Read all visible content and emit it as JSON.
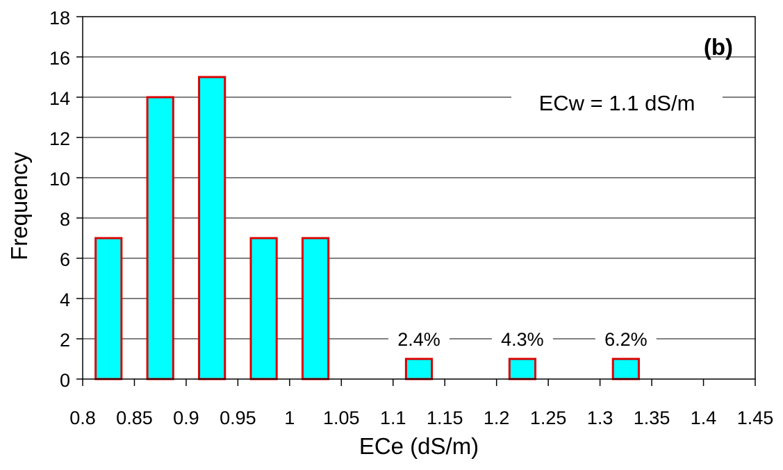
{
  "chart_data": {
    "type": "bar",
    "panel_label": "(b)",
    "xlabel": "ECe (dS/m)",
    "ylabel": "Frequency",
    "xlim": [
      0.8,
      1.45
    ],
    "ylim": [
      0,
      18
    ],
    "x_ticks": [
      "0.8",
      "0.85",
      "0.9",
      "0.95",
      "1",
      "1.05",
      "1.1",
      "1.15",
      "1.2",
      "1.25",
      "1.3",
      "1.35",
      "1.4",
      "1.45"
    ],
    "y_ticks": [
      "0",
      "2",
      "4",
      "6",
      "8",
      "10",
      "12",
      "14",
      "16",
      "18"
    ],
    "bins": [
      [
        0.8,
        0.85
      ],
      [
        0.85,
        0.9
      ],
      [
        0.9,
        0.95
      ],
      [
        0.95,
        1.0
      ],
      [
        1.0,
        1.05
      ],
      [
        1.1,
        1.15
      ],
      [
        1.2,
        1.25
      ],
      [
        1.3,
        1.35
      ]
    ],
    "values": [
      7,
      14,
      15,
      7,
      7,
      1,
      1,
      1
    ],
    "bar_labels": [
      "",
      "",
      "",
      "",
      "",
      "2.4%",
      "4.3%",
      "6.2%"
    ],
    "annotation": "ECw = 1.1 dS/m",
    "grid": "horizontal",
    "colors": {
      "bar_fill": "#00ffff",
      "bar_stroke": "#dd0000",
      "grid": "#000000",
      "axis": "#000000"
    }
  }
}
